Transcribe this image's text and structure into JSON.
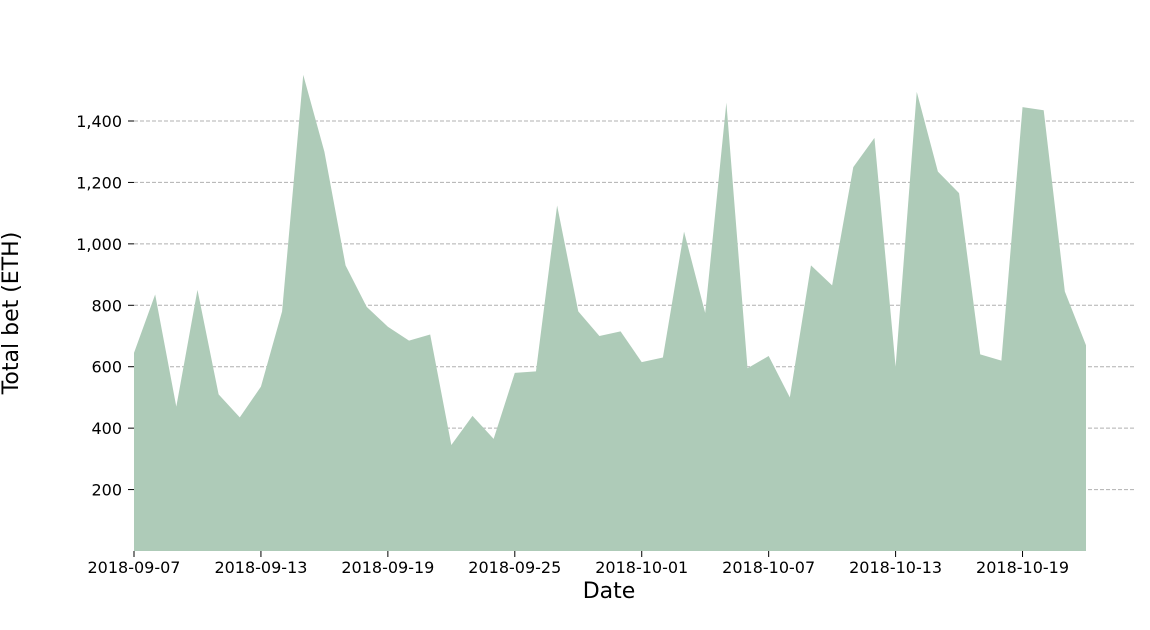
{
  "chart_data": {
    "type": "area",
    "title": "",
    "xlabel": "Date",
    "ylabel": "Total bet (ETH)",
    "x_start": "2018-09-07",
    "x_end": "2018-10-22",
    "x": [
      "2018-09-07",
      "2018-09-08",
      "2018-09-09",
      "2018-09-10",
      "2018-09-11",
      "2018-09-12",
      "2018-09-13",
      "2018-09-14",
      "2018-09-15",
      "2018-09-16",
      "2018-09-17",
      "2018-09-18",
      "2018-09-19",
      "2018-09-20",
      "2018-09-21",
      "2018-09-22",
      "2018-09-23",
      "2018-09-24",
      "2018-09-25",
      "2018-09-26",
      "2018-09-27",
      "2018-09-28",
      "2018-09-29",
      "2018-09-30",
      "2018-10-01",
      "2018-10-02",
      "2018-10-03",
      "2018-10-04",
      "2018-10-05",
      "2018-10-06",
      "2018-10-07",
      "2018-10-08",
      "2018-10-09",
      "2018-10-10",
      "2018-10-11",
      "2018-10-12",
      "2018-10-13",
      "2018-10-14",
      "2018-10-15",
      "2018-10-16",
      "2018-10-17",
      "2018-10-18",
      "2018-10-19",
      "2018-10-20",
      "2018-10-21",
      "2018-10-22"
    ],
    "y": [
      645,
      835,
      470,
      850,
      510,
      435,
      535,
      780,
      1550,
      1300,
      930,
      795,
      730,
      685,
      705,
      345,
      440,
      365,
      580,
      585,
      1125,
      780,
      700,
      715,
      615,
      630,
      1040,
      775,
      1460,
      595,
      635,
      500,
      930,
      865,
      1250,
      1345,
      600,
      1495,
      1235,
      1165,
      640,
      620,
      1445,
      1435,
      845,
      670
    ],
    "ylim": [
      0,
      1600
    ],
    "yticks": [
      200,
      400,
      600,
      800,
      1000,
      1200,
      1400
    ],
    "ytick_labels": [
      "200",
      "400",
      "600",
      "800",
      "1,000",
      "1,200",
      "1,400"
    ],
    "xticks": [
      "2018-09-07",
      "2018-09-13",
      "2018-09-19",
      "2018-09-25",
      "2018-10-01",
      "2018-10-07",
      "2018-10-13",
      "2018-10-19"
    ],
    "grid": "y",
    "fill_color": "#aecbb8"
  }
}
